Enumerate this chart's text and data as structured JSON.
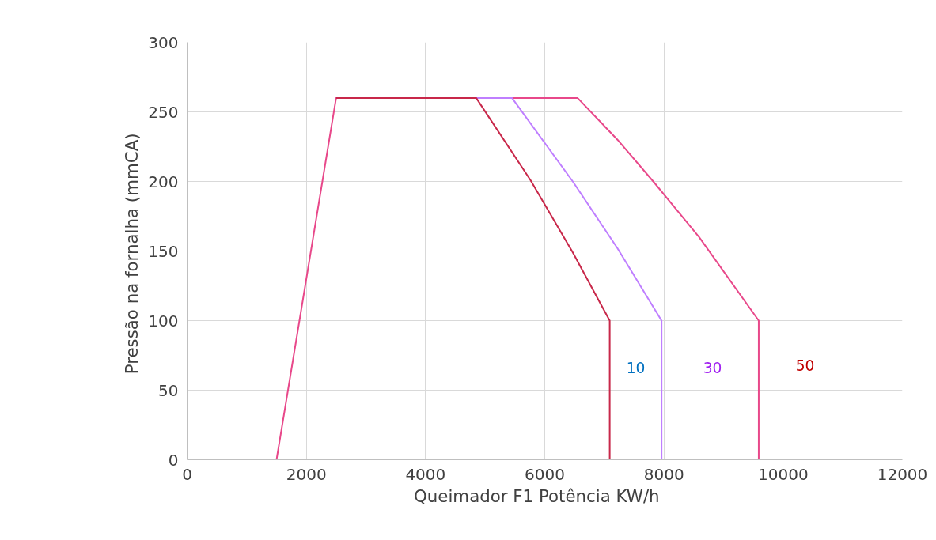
{
  "chart_data": {
    "type": "line",
    "xlabel": "Queimador F1   Potência  KW/h",
    "ylabel": "Pressão na fornalha  (mmCA)",
    "xlim": [
      0,
      12000
    ],
    "ylim": [
      0,
      300
    ],
    "xticks": [
      0,
      2000,
      4000,
      6000,
      8000,
      10000,
      12000
    ],
    "yticks": [
      0,
      50,
      100,
      150,
      200,
      250,
      300
    ],
    "grid": true,
    "marker": "none",
    "line_style": "solid",
    "series": [
      {
        "color": "#e8488a",
        "x": [
          1500,
          2500,
          6550,
          7220,
          7840,
          8590,
          9590,
          9590
        ],
        "values": [
          0,
          260,
          260,
          230,
          199,
          160,
          100,
          0
        ]
      },
      {
        "color": "#bf7fff",
        "x": [
          2500,
          5450,
          6470,
          7220,
          7960,
          7960
        ],
        "values": [
          260,
          260,
          200,
          152,
          100,
          0
        ]
      },
      {
        "color": "#c8284a",
        "x": [
          2500,
          4850,
          5760,
          6470,
          7090,
          7090
        ],
        "values": [
          260,
          260,
          201,
          149,
          100,
          0
        ]
      }
    ],
    "annotations": [
      "10",
      "30",
      "50"
    ]
  }
}
